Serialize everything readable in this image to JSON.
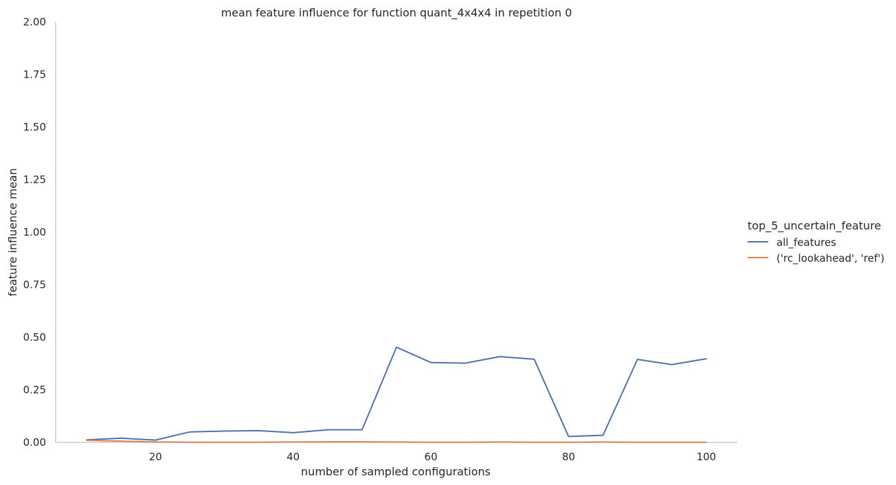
{
  "chart_data": {
    "type": "line",
    "title": "mean feature influence for function quant_4x4x4 in repetition 0",
    "xlabel": "number of sampled configurations",
    "ylabel": "feature influence mean",
    "xlim": [
      5.5,
      104.5
    ],
    "ylim": [
      0,
      2
    ],
    "xticks": [
      20,
      40,
      60,
      80,
      100
    ],
    "xtick_labels": [
      "20",
      "40",
      "60",
      "80",
      "100"
    ],
    "yticks": [
      0,
      0.25,
      0.5,
      0.75,
      1.0,
      1.25,
      1.5,
      1.75,
      2.0
    ],
    "ytick_labels": [
      "0.00",
      "0.25",
      "0.50",
      "0.75",
      "1.00",
      "1.25",
      "1.50",
      "1.75",
      "2.00"
    ],
    "grid": false,
    "legend": {
      "title": "top_5_uncertain_feature",
      "placement": "right"
    },
    "x": [
      10,
      15,
      20,
      25,
      30,
      35,
      40,
      45,
      50,
      55,
      60,
      65,
      70,
      75,
      80,
      85,
      90,
      95,
      100
    ],
    "series": [
      {
        "name": "all_features",
        "color": "#4c72b0",
        "values": [
          0.012,
          0.02,
          0.011,
          0.05,
          0.054,
          0.056,
          0.046,
          0.06,
          0.06,
          0.453,
          0.38,
          0.377,
          0.408,
          0.396,
          0.028,
          0.034,
          0.395,
          0.37,
          0.398
        ]
      },
      {
        "name": "('rc_lookahead', 'ref')",
        "color": "#dd8452",
        "values": [
          0.01,
          0.006,
          0.002,
          0.001,
          0.001,
          0.001,
          0.002,
          0.003,
          0.003,
          0.002,
          0.001,
          0.001,
          0.002,
          0.001,
          0.001,
          0.002,
          0.001,
          0.001,
          0.001
        ]
      }
    ]
  }
}
